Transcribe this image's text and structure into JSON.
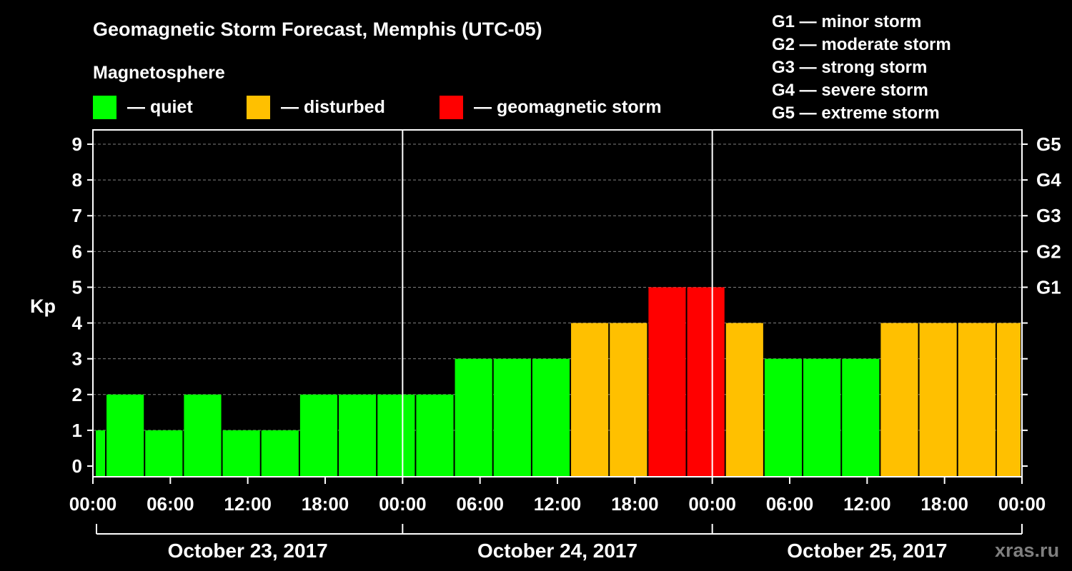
{
  "chart_data": {
    "type": "bar",
    "title": "Geomagnetic Storm Forecast, Memphis (UTC-05)",
    "legend_title": "Magnetosphere",
    "legend": [
      {
        "key": "quiet",
        "label": "— quiet",
        "color": "#00ff00"
      },
      {
        "key": "disturbed",
        "label": "— disturbed",
        "color": "#ffc000"
      },
      {
        "key": "storm",
        "label": "— geomagnetic storm",
        "color": "#ff0000"
      }
    ],
    "storm_scale": [
      "G1 — minor storm",
      "G2 — moderate storm",
      "G3 — strong storm",
      "G4 — severe storm",
      "G5 — extreme storm"
    ],
    "ylabel": "Kp",
    "ylim": [
      -0.3,
      9.4
    ],
    "y_ticks": [
      "0",
      "1",
      "2",
      "3",
      "4",
      "5",
      "6",
      "7",
      "8",
      "9"
    ],
    "right_ticks": [
      {
        "kp": 5,
        "label": "G1"
      },
      {
        "kp": 6,
        "label": "G2"
      },
      {
        "kp": 7,
        "label": "G3"
      },
      {
        "kp": 8,
        "label": "G4"
      },
      {
        "kp": 9,
        "label": "G5"
      }
    ],
    "x_range_hours": [
      0,
      72
    ],
    "x_tick_labels": [
      "00:00",
      "06:00",
      "12:00",
      "18:00",
      "00:00",
      "06:00",
      "12:00",
      "18:00",
      "00:00",
      "06:00",
      "12:00",
      "18:00",
      "00:00"
    ],
    "day_dividers_hours": [
      24,
      48
    ],
    "dates": [
      "October 23, 2017",
      "October 24, 2017",
      "October 25, 2017"
    ],
    "bars": [
      {
        "start": 0,
        "end": 1,
        "kp": 1,
        "level": "quiet"
      },
      {
        "start": 1,
        "end": 4,
        "kp": 2,
        "level": "quiet"
      },
      {
        "start": 4,
        "end": 7,
        "kp": 1,
        "level": "quiet"
      },
      {
        "start": 7,
        "end": 10,
        "kp": 2,
        "level": "quiet"
      },
      {
        "start": 10,
        "end": 13,
        "kp": 1,
        "level": "quiet"
      },
      {
        "start": 13,
        "end": 16,
        "kp": 1,
        "level": "quiet"
      },
      {
        "start": 16,
        "end": 19,
        "kp": 2,
        "level": "quiet"
      },
      {
        "start": 19,
        "end": 22,
        "kp": 2,
        "level": "quiet"
      },
      {
        "start": 22,
        "end": 25,
        "kp": 2,
        "level": "quiet"
      },
      {
        "start": 25,
        "end": 28,
        "kp": 2,
        "level": "quiet"
      },
      {
        "start": 28,
        "end": 31,
        "kp": 3,
        "level": "quiet"
      },
      {
        "start": 31,
        "end": 34,
        "kp": 3,
        "level": "quiet"
      },
      {
        "start": 34,
        "end": 37,
        "kp": 3,
        "level": "quiet"
      },
      {
        "start": 37,
        "end": 40,
        "kp": 4,
        "level": "disturbed"
      },
      {
        "start": 40,
        "end": 43,
        "kp": 4,
        "level": "disturbed"
      },
      {
        "start": 43,
        "end": 46,
        "kp": 5,
        "level": "storm"
      },
      {
        "start": 46,
        "end": 49,
        "kp": 5,
        "level": "storm"
      },
      {
        "start": 49,
        "end": 52,
        "kp": 4,
        "level": "disturbed"
      },
      {
        "start": 52,
        "end": 55,
        "kp": 3,
        "level": "quiet"
      },
      {
        "start": 55,
        "end": 58,
        "kp": 3,
        "level": "quiet"
      },
      {
        "start": 58,
        "end": 61,
        "kp": 3,
        "level": "quiet"
      },
      {
        "start": 61,
        "end": 64,
        "kp": 4,
        "level": "disturbed"
      },
      {
        "start": 64,
        "end": 67,
        "kp": 4,
        "level": "disturbed"
      },
      {
        "start": 67,
        "end": 70,
        "kp": 4,
        "level": "disturbed"
      },
      {
        "start": 70,
        "end": 72,
        "kp": 4,
        "level": "disturbed"
      }
    ],
    "grid": true
  },
  "watermark": "xras.ru"
}
